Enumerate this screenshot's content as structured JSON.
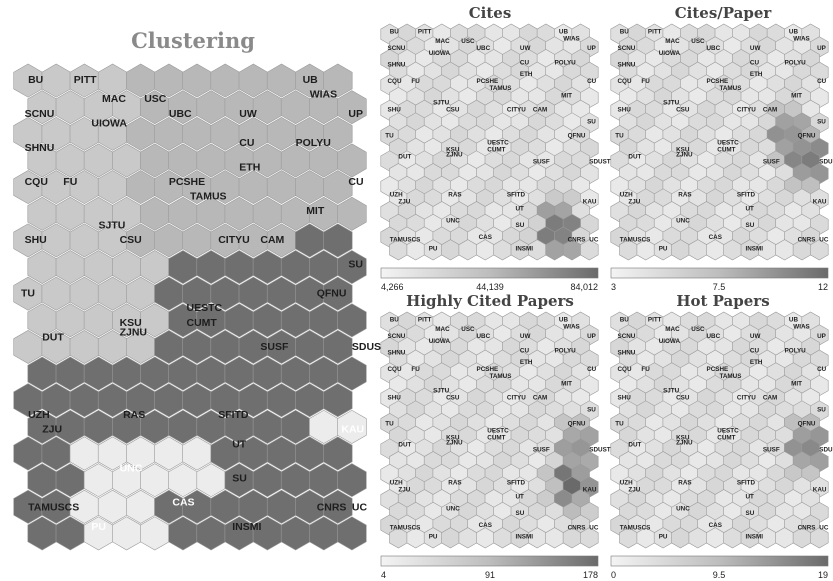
{
  "chart_data": [
    {
      "type": "heatmap",
      "title": "Clustering",
      "map": "clustering",
      "clusters": [
        "light-gray",
        "mid-gray",
        "dark-gray",
        "lightest-gray"
      ],
      "labels": [
        "BU",
        "PITT",
        "MAC",
        "USC",
        "UB",
        "WIAS",
        "SCNU",
        "UIOWA",
        "UBC",
        "UW",
        "UP",
        "SHNU",
        "CU",
        "POLYU",
        "ETH",
        "CQU",
        "FU",
        "PCSHE",
        "TAMUS",
        "CU",
        "MIT",
        "SJTU",
        "SHU",
        "CSU",
        "CITYU",
        "CAM",
        "SU",
        "TU",
        "QFNU",
        "UESTC",
        "CUMT",
        "KSU",
        "ZJNU",
        "DUT",
        "SUSF",
        "SDUST",
        "UZH",
        "RAS",
        "SFITD",
        "ZJU",
        "UT",
        "KAU",
        "SU",
        "UNC",
        "CAS",
        "TAMUSCS",
        "PU",
        "INSMI",
        "CNRS",
        "UC"
      ]
    },
    {
      "type": "heatmap",
      "title": "Cites",
      "map": "cites",
      "colorbar": {
        "min": "4,266",
        "mid": "44,139",
        "max": "84,012"
      },
      "hotspots": [
        {
          "label": "CNRS",
          "level": 0.95
        }
      ]
    },
    {
      "type": "heatmap",
      "title": "Cites/Paper",
      "map": "cites_per_paper",
      "colorbar": {
        "min": "3",
        "mid": "7.5",
        "max": "12"
      },
      "hotspots": [
        {
          "label": "SDUST",
          "level": 0.9
        },
        {
          "label": "QFNU",
          "level": 0.75
        }
      ]
    },
    {
      "type": "heatmap",
      "title": "Highly Cited Papers",
      "map": "highly_cited",
      "colorbar": {
        "min": "4",
        "mid": "91",
        "max": "178"
      },
      "hotspots": [
        {
          "label": "KAU",
          "level": 0.95
        },
        {
          "label": "SDUST",
          "level": 0.7
        }
      ]
    },
    {
      "type": "heatmap",
      "title": "Hot Papers",
      "map": "hot_papers",
      "colorbar": {
        "min": "0",
        "mid": "9.5",
        "max": "19"
      },
      "hotspots": [
        {
          "label": "SDUST",
          "level": 0.8
        }
      ]
    }
  ]
}
